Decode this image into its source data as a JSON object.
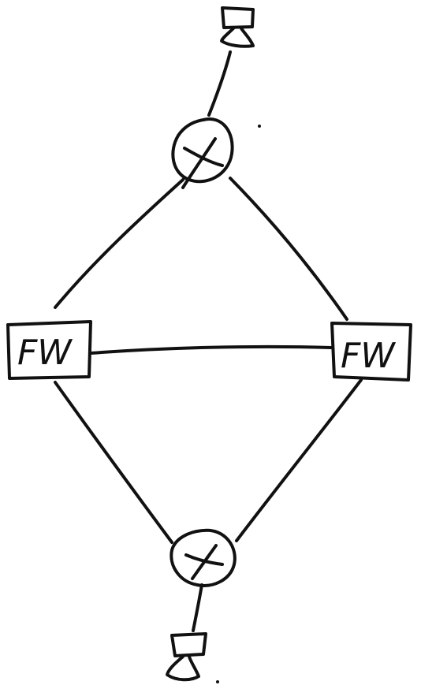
{
  "diagram": {
    "colors": {
      "ink": "#111111",
      "background": "#ffffff"
    },
    "nodes": {
      "client_top": {
        "type": "workstation-icon"
      },
      "router_top": {
        "type": "router-icon"
      },
      "firewall_left": {
        "type": "firewall",
        "label": "FW"
      },
      "firewall_right": {
        "type": "firewall",
        "label": "FW"
      },
      "router_bottom": {
        "type": "router-icon"
      },
      "client_bottom": {
        "type": "workstation-icon"
      }
    },
    "links": [
      [
        "client_top",
        "router_top"
      ],
      [
        "router_top",
        "firewall_left"
      ],
      [
        "router_top",
        "firewall_right"
      ],
      [
        "firewall_left",
        "firewall_right"
      ],
      [
        "firewall_left",
        "router_bottom"
      ],
      [
        "firewall_right",
        "router_bottom"
      ],
      [
        "router_bottom",
        "client_bottom"
      ]
    ]
  }
}
